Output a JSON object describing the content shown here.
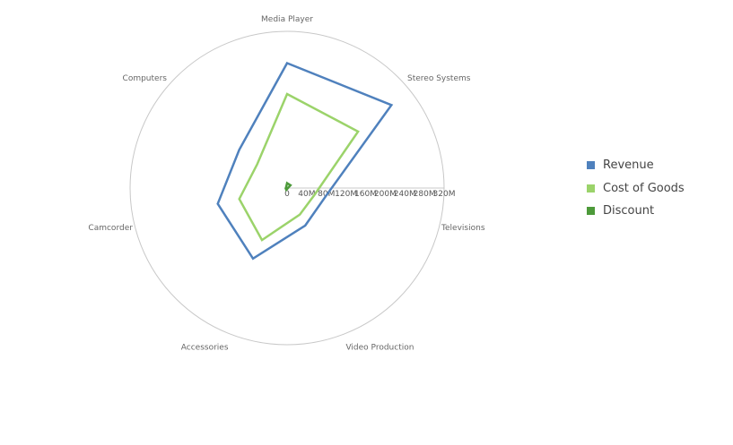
{
  "chart_data": {
    "type": "radar",
    "categories": [
      "Media Player",
      "Stereo Systems",
      "Televisions",
      "Video Production",
      "Accessories",
      "Camcorder",
      "Computers"
    ],
    "tick_labels": [
      "0",
      "40M",
      "80M",
      "120M",
      "160M",
      "200M",
      "240M",
      "280M",
      "320M"
    ],
    "rlim": [
      0,
      320000000
    ],
    "series": [
      {
        "name": "Revenue",
        "color": "#4f81bd",
        "values": [
          255000000,
          272000000,
          80000000,
          85000000,
          160000000,
          145000000,
          125000000
        ]
      },
      {
        "name": "Cost of Goods",
        "color": "#9bd36a",
        "values": [
          192000000,
          185000000,
          58000000,
          60000000,
          118000000,
          100000000,
          78000000
        ]
      },
      {
        "name": "Discount",
        "color": "#4d9a3a",
        "values": [
          10000000,
          9000000,
          1500000,
          1500000,
          4000000,
          3000000,
          2500000
        ]
      }
    ],
    "grid": true,
    "legend_position": "right"
  }
}
